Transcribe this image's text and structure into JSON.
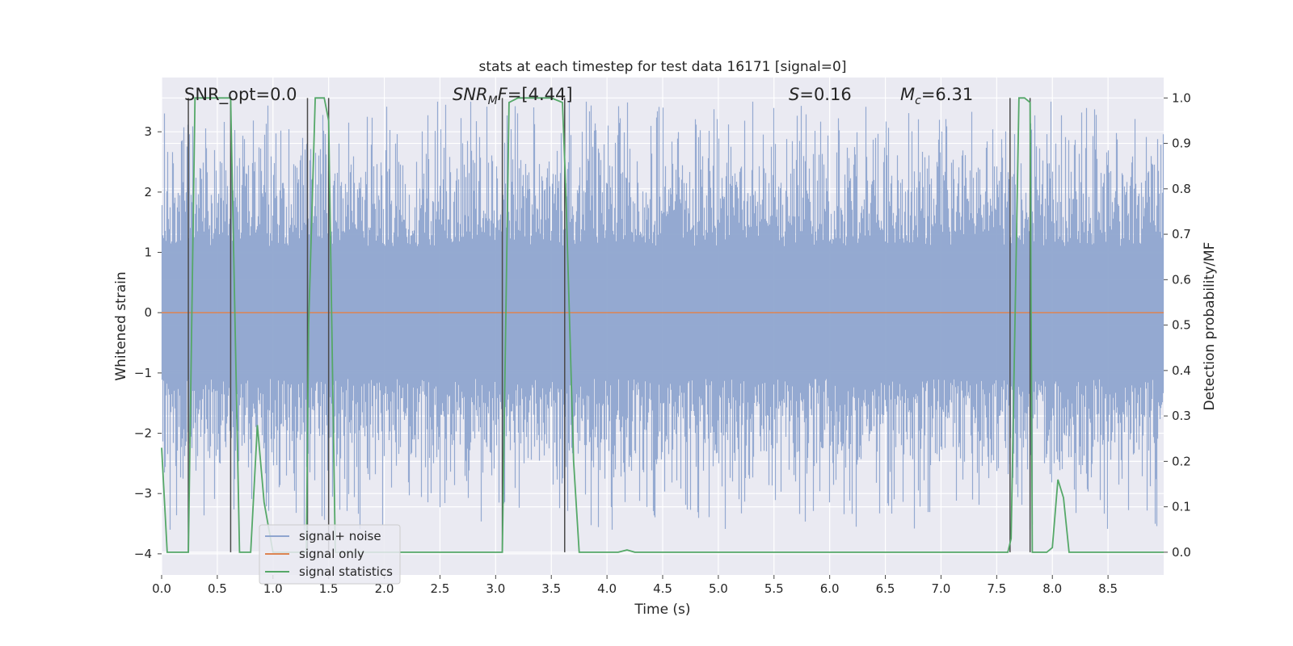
{
  "chart_data": {
    "type": "line",
    "title": "stats at each timestep for test data 16171 [signal=0]",
    "xlabel": "Time (s)",
    "ylabel": "Whitened strain",
    "ylabel_right": "Detection probability/MF",
    "xlim": [
      0.0,
      9.0
    ],
    "ylim": [
      -4.35,
      3.9
    ],
    "ylim_right": [
      -0.05,
      1.045
    ],
    "grid": true,
    "legend_position": "lower-left",
    "x_ticks": [
      "0.0",
      "0.5",
      "1.0",
      "1.5",
      "2.0",
      "2.5",
      "3.0",
      "3.5",
      "4.0",
      "4.5",
      "5.0",
      "5.5",
      "6.0",
      "6.5",
      "7.0",
      "7.5",
      "8.0",
      "8.5"
    ],
    "y_ticks": [
      "3",
      "2",
      "1",
      "0",
      "−1",
      "−2",
      "−3",
      "−4"
    ],
    "y_ticks_right": [
      "1.0",
      "0.9",
      "0.8",
      "0.7",
      "0.6",
      "0.5",
      "0.4",
      "0.3",
      "0.2",
      "0.1",
      "0.0"
    ],
    "annotations": {
      "snr_opt": "SNR_opt=0.0",
      "snr_mf_base": "SNR",
      "snr_mf_sub": "M",
      "snr_mf_var": "F",
      "snr_mf_value": "=[4.44]",
      "s_var": "S",
      "s_value": "=0.16",
      "mc_var": "M",
      "mc_sub": "c",
      "mc_value": "=6.31"
    },
    "series": [
      {
        "name": "signal+ noise",
        "color": "#8fa5cf",
        "description_style": "dense whitened noise, roughly within ±2 with spikes to ±3.5",
        "envelope_upper": 2.0,
        "envelope_lower": -2.0,
        "peak_max": 3.5,
        "peak_min": -3.6
      },
      {
        "name": "signal only",
        "color": "#dd8452",
        "x": [
          0.0,
          9.0
        ],
        "y": [
          0.0,
          0.0
        ]
      },
      {
        "name": "signal statistics",
        "color": "#55a868",
        "axis": "right",
        "x": [
          0.0,
          0.05,
          0.1,
          0.2,
          0.24,
          0.3,
          0.35,
          0.4,
          0.5,
          0.6,
          0.62,
          0.7,
          0.75,
          0.8,
          0.86,
          0.92,
          1.0,
          1.05,
          1.1,
          1.2,
          1.3,
          1.32,
          1.38,
          1.42,
          1.46,
          1.5,
          1.56,
          1.6,
          1.7,
          2.0,
          2.5,
          2.85,
          2.9,
          3.0,
          3.06,
          3.12,
          3.2,
          3.3,
          3.4,
          3.5,
          3.6,
          3.63,
          3.7,
          3.75,
          3.8,
          4.1,
          4.18,
          4.25,
          4.5,
          5.0,
          5.5,
          6.0,
          6.5,
          7.0,
          7.5,
          7.6,
          7.63,
          7.7,
          7.75,
          7.8,
          7.82,
          7.88,
          7.95,
          8.0,
          8.05,
          8.1,
          8.15,
          8.2,
          8.25,
          8.5,
          9.0
        ],
        "y": [
          0.23,
          0.0,
          0.0,
          0.0,
          0.0,
          1.0,
          1.0,
          1.0,
          1.0,
          1.0,
          1.0,
          0.0,
          0.0,
          0.0,
          0.28,
          0.11,
          0.0,
          0.0,
          0.0,
          0.0,
          0.0,
          0.5,
          1.0,
          1.0,
          1.0,
          0.95,
          0.0,
          0.0,
          0.0,
          0.0,
          0.0,
          0.0,
          0.0,
          0.0,
          0.0,
          0.99,
          1.0,
          1.0,
          1.0,
          1.0,
          0.99,
          0.8,
          0.2,
          0.0,
          0.0,
          0.0,
          0.005,
          0.0,
          0.0,
          0.0,
          0.0,
          0.0,
          0.0,
          0.0,
          0.0,
          0.0,
          0.03,
          1.0,
          1.0,
          0.99,
          0.0,
          0.0,
          0.0,
          0.01,
          0.16,
          0.12,
          0.0,
          0.0,
          0.0,
          0.0,
          0.0
        ]
      }
    ],
    "vertical_markers_x": [
      0.24,
      0.62,
      1.31,
      1.5,
      3.06,
      3.62,
      7.62,
      7.8
    ]
  }
}
